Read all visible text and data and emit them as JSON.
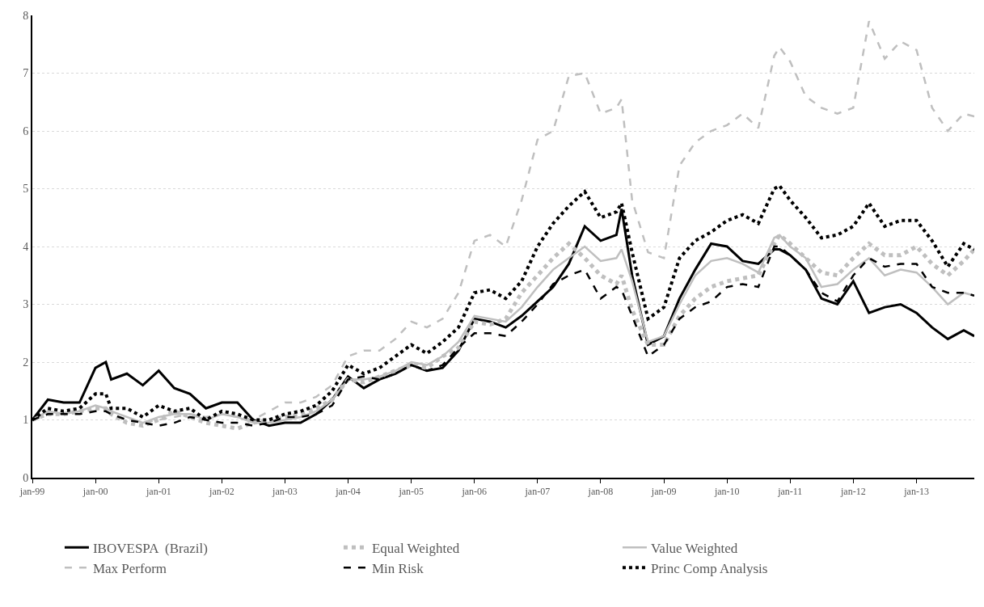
{
  "chart_data": {
    "type": "line",
    "x": [
      "1999-01",
      "1999-04",
      "1999-07",
      "1999-10",
      "2000-01",
      "2000-03",
      "2000-04",
      "2000-07",
      "2000-10",
      "2001-01",
      "2001-04",
      "2001-07",
      "2001-10",
      "2002-01",
      "2002-04",
      "2002-07",
      "2002-10",
      "2003-01",
      "2003-04",
      "2003-07",
      "2003-10",
      "2004-01",
      "2004-04",
      "2004-07",
      "2004-10",
      "2005-01",
      "2005-04",
      "2005-07",
      "2005-10",
      "2006-01",
      "2006-04",
      "2006-07",
      "2006-10",
      "2007-01",
      "2007-04",
      "2007-07",
      "2007-10",
      "2008-01",
      "2008-04",
      "2008-05",
      "2008-07",
      "2008-10",
      "2009-01",
      "2009-04",
      "2009-07",
      "2009-10",
      "2010-01",
      "2010-04",
      "2010-07",
      "2010-10",
      "2010-11",
      "2011-01",
      "2011-04",
      "2011-07",
      "2011-10",
      "2012-01",
      "2012-04",
      "2012-07",
      "2012-10",
      "2013-01",
      "2013-04",
      "2013-07",
      "2013-10",
      "2013-12"
    ],
    "series": [
      {
        "name": "IBOVESPA  (Brazil)",
        "color": "#000000",
        "line_style": "solid",
        "values": [
          1.0,
          1.35,
          1.3,
          1.3,
          1.9,
          2.0,
          1.7,
          1.8,
          1.6,
          1.85,
          1.55,
          1.45,
          1.2,
          1.3,
          1.3,
          1.0,
          0.9,
          0.95,
          0.95,
          1.1,
          1.35,
          1.75,
          1.55,
          1.7,
          1.8,
          1.95,
          1.85,
          1.9,
          2.2,
          2.75,
          2.7,
          2.6,
          2.8,
          3.05,
          3.3,
          3.7,
          4.35,
          4.1,
          4.2,
          4.65,
          3.5,
          2.3,
          2.45,
          3.1,
          3.6,
          4.05,
          4.0,
          3.75,
          3.7,
          3.95,
          3.95,
          3.85,
          3.6,
          3.1,
          3.0,
          3.4,
          2.85,
          2.95,
          3.0,
          2.85,
          2.6,
          2.4,
          2.55,
          2.45
        ]
      },
      {
        "name": "Equal Weighted",
        "color": "#bfbfbf",
        "line_style": "dotted",
        "values": [
          1.0,
          1.1,
          1.1,
          1.15,
          1.2,
          1.2,
          1.1,
          0.95,
          0.9,
          1.0,
          1.15,
          1.05,
          0.95,
          0.9,
          0.85,
          0.95,
          1.0,
          1.05,
          1.1,
          1.2,
          1.35,
          1.7,
          1.65,
          1.75,
          1.85,
          1.95,
          1.9,
          2.1,
          2.25,
          2.7,
          2.65,
          2.75,
          3.2,
          3.5,
          3.8,
          4.05,
          3.8,
          3.5,
          3.35,
          3.5,
          2.9,
          2.3,
          2.3,
          2.8,
          3.1,
          3.3,
          3.4,
          3.45,
          3.5,
          4.05,
          4.2,
          4.05,
          3.8,
          3.55,
          3.5,
          3.8,
          4.05,
          3.85,
          3.85,
          4.0,
          3.7,
          3.5,
          3.75,
          3.95
        ]
      },
      {
        "name": "Value Weighted",
        "color": "#bfbfbf",
        "line_style": "solid",
        "values": [
          1.0,
          1.15,
          1.1,
          1.15,
          1.25,
          1.2,
          1.15,
          1.05,
          0.95,
          1.05,
          1.1,
          1.1,
          1.0,
          1.1,
          1.05,
          0.95,
          0.95,
          1.0,
          1.05,
          1.15,
          1.35,
          1.7,
          1.7,
          1.75,
          1.85,
          2.0,
          1.95,
          2.1,
          2.35,
          2.8,
          2.75,
          2.7,
          2.95,
          3.3,
          3.6,
          3.8,
          4.0,
          3.75,
          3.8,
          3.95,
          3.4,
          2.35,
          2.45,
          3.0,
          3.5,
          3.75,
          3.8,
          3.7,
          3.55,
          4.15,
          4.2,
          4.0,
          3.8,
          3.3,
          3.35,
          3.6,
          3.8,
          3.5,
          3.6,
          3.55,
          3.3,
          3.0,
          3.2,
          3.15
        ]
      },
      {
        "name": "Max Perform",
        "color": "#bfbfbf",
        "line_style": "dashed",
        "values": [
          1.0,
          1.1,
          1.1,
          1.15,
          1.15,
          1.15,
          1.1,
          1.0,
          0.95,
          1.0,
          1.05,
          1.1,
          1.05,
          1.1,
          1.05,
          1.0,
          1.15,
          1.3,
          1.3,
          1.4,
          1.6,
          2.1,
          2.2,
          2.2,
          2.4,
          2.7,
          2.6,
          2.75,
          3.2,
          4.1,
          4.2,
          4.0,
          4.8,
          5.85,
          6.0,
          6.95,
          7.0,
          6.3,
          6.4,
          6.55,
          4.8,
          3.9,
          3.8,
          5.4,
          5.8,
          6.0,
          6.1,
          6.3,
          6.05,
          7.3,
          7.45,
          7.2,
          6.6,
          6.4,
          6.3,
          6.4,
          7.9,
          7.25,
          7.55,
          7.4,
          6.4,
          6.0,
          6.3,
          6.25
        ]
      },
      {
        "name": "Min Risk",
        "color": "#000000",
        "line_style": "dashed",
        "values": [
          1.0,
          1.1,
          1.1,
          1.1,
          1.15,
          1.15,
          1.1,
          1.0,
          0.95,
          0.9,
          0.95,
          1.05,
          1.0,
          0.95,
          0.95,
          0.9,
          0.95,
          1.05,
          1.05,
          1.1,
          1.25,
          1.7,
          1.75,
          1.7,
          1.8,
          1.95,
          1.85,
          1.95,
          2.25,
          2.5,
          2.5,
          2.45,
          2.7,
          3.0,
          3.35,
          3.5,
          3.6,
          3.1,
          3.3,
          3.25,
          2.8,
          2.1,
          2.3,
          2.75,
          2.95,
          3.05,
          3.3,
          3.35,
          3.3,
          4.0,
          4.0,
          3.85,
          3.6,
          3.2,
          3.05,
          3.5,
          3.8,
          3.65,
          3.7,
          3.7,
          3.3,
          3.2,
          3.2,
          3.15
        ]
      },
      {
        "name": "Princ Comp Analysis",
        "color": "#000000",
        "line_style": "dotted",
        "values": [
          1.0,
          1.2,
          1.15,
          1.2,
          1.45,
          1.45,
          1.2,
          1.2,
          1.05,
          1.25,
          1.15,
          1.2,
          1.0,
          1.15,
          1.1,
          1.0,
          1.0,
          1.1,
          1.15,
          1.25,
          1.5,
          1.95,
          1.8,
          1.9,
          2.1,
          2.3,
          2.15,
          2.35,
          2.6,
          3.2,
          3.25,
          3.1,
          3.4,
          4.0,
          4.4,
          4.7,
          4.95,
          4.5,
          4.6,
          4.75,
          3.9,
          2.75,
          2.95,
          3.8,
          4.1,
          4.25,
          4.45,
          4.55,
          4.4,
          5.0,
          5.05,
          4.8,
          4.5,
          4.15,
          4.2,
          4.35,
          4.75,
          4.35,
          4.45,
          4.45,
          4.1,
          3.65,
          4.05,
          3.95
        ]
      }
    ],
    "xlim": [
      "1999-01",
      "2013-12"
    ],
    "xticks": [
      {
        "value": "1999-01",
        "label": "jan-99"
      },
      {
        "value": "2000-01",
        "label": "jan-00"
      },
      {
        "value": "2001-01",
        "label": "jan-01"
      },
      {
        "value": "2002-01",
        "label": "jan-02"
      },
      {
        "value": "2003-01",
        "label": "jan-03"
      },
      {
        "value": "2004-01",
        "label": "jan-04"
      },
      {
        "value": "2005-01",
        "label": "jan-05"
      },
      {
        "value": "2006-01",
        "label": "jan-06"
      },
      {
        "value": "2007-01",
        "label": "jan-07"
      },
      {
        "value": "2008-01",
        "label": "jan-08"
      },
      {
        "value": "2009-01",
        "label": "jan-09"
      },
      {
        "value": "2010-01",
        "label": "jan-10"
      },
      {
        "value": "2011-01",
        "label": "jan-11"
      },
      {
        "value": "2012-01",
        "label": "jan-12"
      },
      {
        "value": "2013-01",
        "label": "jan-13"
      }
    ],
    "ylim": [
      0,
      8
    ],
    "yticks": [
      0,
      1,
      2,
      3,
      4,
      5,
      6,
      7,
      8
    ],
    "grid": "y",
    "legend": "bottom",
    "marker": "none"
  }
}
